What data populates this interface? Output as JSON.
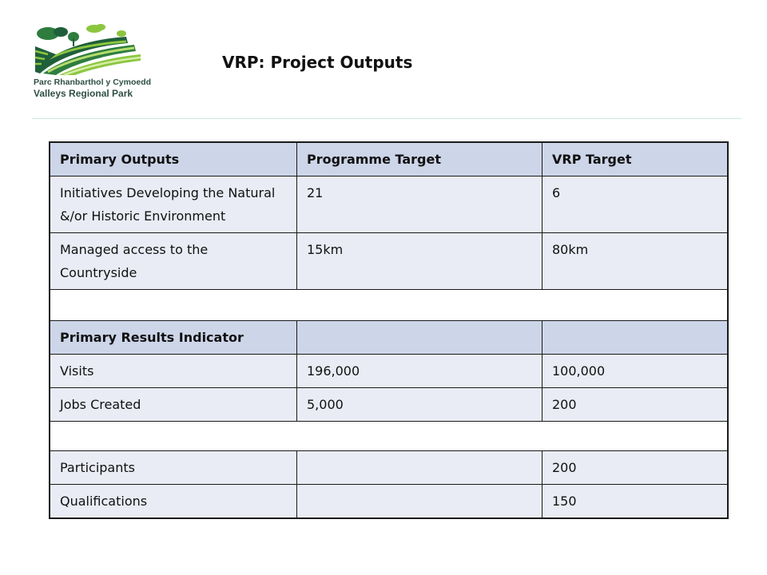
{
  "logo": {
    "line1": "Parc Rhanbarthol y Cymoedd",
    "line2": "Valleys Regional Park",
    "colors": {
      "green_light": "#8cc63f",
      "green_dark": "#1f5f3a",
      "teal": "#2f4f44"
    }
  },
  "title": "VRP: Project Outputs",
  "table": {
    "header": [
      "Primary Outputs",
      "Programme Target",
      "VRP Target"
    ],
    "rows": [
      [
        "Initiatives Developing the Natural &/or Historic Environment",
        "21",
        "6"
      ],
      [
        "Managed access to the Countryside",
        "15km",
        "80km"
      ]
    ],
    "results_header": [
      "Primary Results Indicator",
      "",
      ""
    ],
    "results_rows": [
      [
        "Visits",
        "196,000",
        "100,000"
      ],
      [
        "Jobs Created",
        "5,000",
        "200"
      ]
    ],
    "other_rows": [
      [
        "Participants",
        "",
        "200"
      ],
      [
        "Qualifications",
        "",
        "150"
      ]
    ]
  },
  "colors": {
    "header_bg": "#cdd5e8",
    "row_bg": "#e9ecf4",
    "rule": "#cfe6e2"
  }
}
